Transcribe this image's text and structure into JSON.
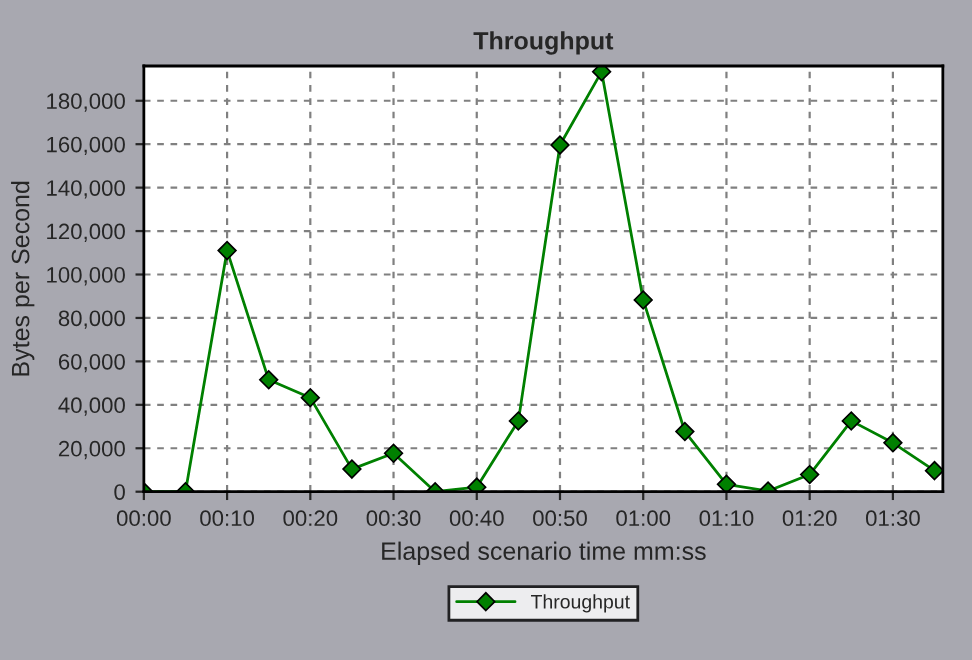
{
  "chart_data": {
    "type": "line",
    "title": "Throughput",
    "xlabel": "Elapsed scenario time mm:ss",
    "ylabel": "Bytes per Second",
    "x": [
      0,
      5,
      10,
      15,
      20,
      25,
      30,
      35,
      40,
      45,
      50,
      55,
      60,
      65,
      70,
      75,
      80,
      85,
      90,
      95
    ],
    "series": [
      {
        "name": "Throughput",
        "color": "#008000",
        "values": [
          0,
          0,
          111000,
          51500,
          43300,
          10400,
          17700,
          0,
          2100,
          32600,
          159600,
          193400,
          88300,
          27700,
          3400,
          300,
          7900,
          32600,
          22500,
          9700
        ]
      }
    ],
    "xlim": [
      0,
      96
    ],
    "xticks": [
      {
        "value": 0,
        "label": "00:00"
      },
      {
        "value": 10,
        "label": "00:10"
      },
      {
        "value": 20,
        "label": "00:20"
      },
      {
        "value": 30,
        "label": "00:30"
      },
      {
        "value": 40,
        "label": "00:40"
      },
      {
        "value": 50,
        "label": "00:50"
      },
      {
        "value": 60,
        "label": "01:00"
      },
      {
        "value": 70,
        "label": "01:10"
      },
      {
        "value": 80,
        "label": "01:20"
      },
      {
        "value": 90,
        "label": "01:30"
      }
    ],
    "ylim": [
      0,
      196000
    ],
    "yticks": [
      {
        "value": 0,
        "label": "0"
      },
      {
        "value": 20000,
        "label": "20,000"
      },
      {
        "value": 40000,
        "label": "40,000"
      },
      {
        "value": 60000,
        "label": "60,000"
      },
      {
        "value": 80000,
        "label": "80,000"
      },
      {
        "value": 100000,
        "label": "100,000"
      },
      {
        "value": 120000,
        "label": "120,000"
      },
      {
        "value": 140000,
        "label": "140,000"
      },
      {
        "value": 160000,
        "label": "160,000"
      },
      {
        "value": 180000,
        "label": "180,000"
      }
    ],
    "grid": true,
    "legend": "bottom",
    "marker": "diamond",
    "line_style": "solid"
  }
}
